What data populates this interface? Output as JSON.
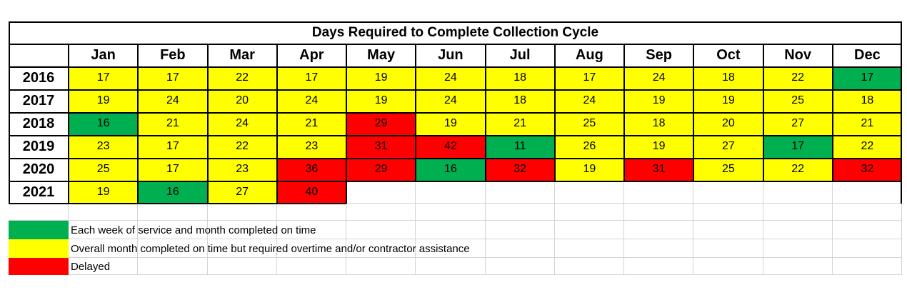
{
  "chart_data": {
    "type": "table",
    "title": "Days Required to Complete Collection Cycle",
    "columns": [
      "Jan",
      "Feb",
      "Mar",
      "Apr",
      "May",
      "Jun",
      "Jul",
      "Aug",
      "Sep",
      "Oct",
      "Nov",
      "Dec"
    ],
    "rows": [
      {
        "year": "2016",
        "values": [
          17,
          17,
          22,
          17,
          19,
          24,
          18,
          17,
          24,
          18,
          22,
          17
        ],
        "status": [
          "y",
          "y",
          "y",
          "y",
          "y",
          "y",
          "y",
          "y",
          "y",
          "y",
          "y",
          "g"
        ]
      },
      {
        "year": "2017",
        "values": [
          19,
          24,
          20,
          24,
          19,
          24,
          18,
          24,
          19,
          19,
          25,
          18
        ],
        "status": [
          "y",
          "y",
          "y",
          "y",
          "y",
          "y",
          "y",
          "y",
          "y",
          "y",
          "y",
          "y"
        ]
      },
      {
        "year": "2018",
        "values": [
          16,
          21,
          24,
          21,
          29,
          19,
          21,
          25,
          18,
          20,
          27,
          21
        ],
        "status": [
          "g",
          "y",
          "y",
          "y",
          "r",
          "y",
          "y",
          "y",
          "y",
          "y",
          "y",
          "y"
        ]
      },
      {
        "year": "2019",
        "values": [
          23,
          17,
          22,
          23,
          31,
          42,
          11,
          26,
          19,
          27,
          17,
          22
        ],
        "status": [
          "y",
          "y",
          "y",
          "y",
          "r",
          "r",
          "g",
          "y",
          "y",
          "y",
          "g",
          "y"
        ]
      },
      {
        "year": "2020",
        "values": [
          25,
          17,
          23,
          36,
          29,
          16,
          32,
          19,
          31,
          25,
          22,
          32
        ],
        "status": [
          "y",
          "y",
          "y",
          "r",
          "r",
          "g",
          "r",
          "y",
          "r",
          "y",
          "y",
          "r"
        ]
      },
      {
        "year": "2021",
        "values": [
          19,
          16,
          27,
          40,
          null,
          null,
          null,
          null,
          null,
          null,
          null,
          null
        ],
        "status": [
          "y",
          "g",
          "y",
          "r",
          "",
          "",
          "",
          "",
          "",
          "",
          "",
          ""
        ]
      }
    ],
    "colors": {
      "g": "#00b050",
      "y": "#ffff00",
      "r": "#ff0000"
    },
    "legend": [
      {
        "key": "g",
        "label": "Each week of service and month completed on time"
      },
      {
        "key": "y",
        "label": "Overall month completed on time but required overtime and/or contractor assistance"
      },
      {
        "key": "r",
        "label": "Delayed"
      }
    ]
  }
}
